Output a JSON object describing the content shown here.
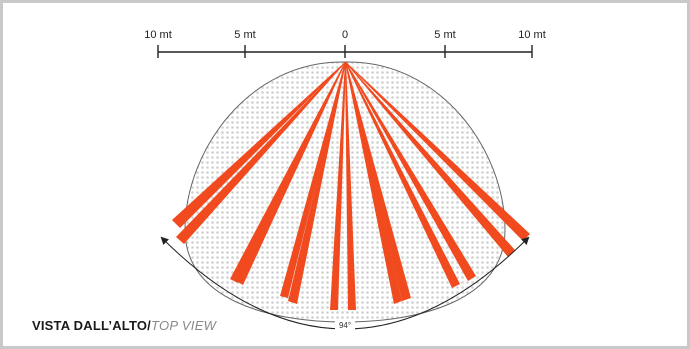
{
  "scale": {
    "ticks": [
      {
        "label": "10 mt"
      },
      {
        "label": "5 mt"
      },
      {
        "label": "0"
      },
      {
        "label": "5 mt"
      },
      {
        "label": "10 mt"
      }
    ]
  },
  "angle_label": "94°",
  "caption": {
    "main": "VISTA DALL’ALTO/",
    "sub": "TOP VIEW"
  },
  "colors": {
    "beam": "#f04a1e",
    "zone_dots": "#cfcfcf",
    "zone_outline": "#666666",
    "frame": "#c9c9c9"
  },
  "beam_count": 14,
  "field_of_view_deg": 94
}
